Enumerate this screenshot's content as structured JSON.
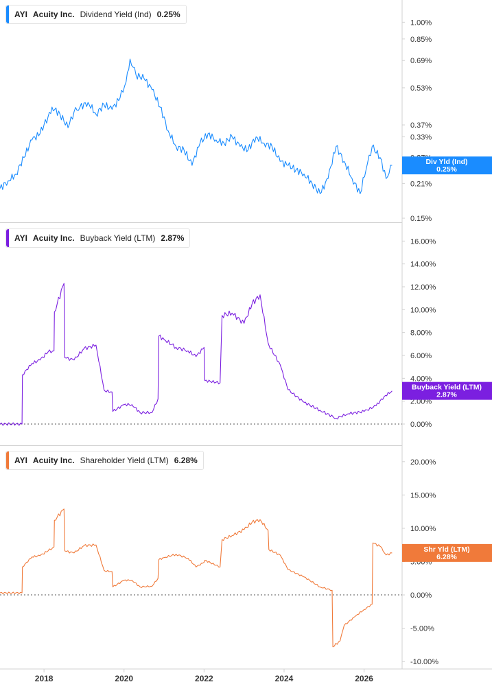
{
  "chart_data": [
    {
      "type": "line",
      "ticker": "AYI",
      "company": "Acuity Inc.",
      "metric": "Dividend Yield (Ind)",
      "value_label": "0.25%",
      "tag_label": "Div Yld (Ind)",
      "tag_value": "0.25%",
      "color": "#1a8cff",
      "scale": "log",
      "ylim": [
        0.15,
        1.1
      ],
      "y_ticks": [
        "1.00%",
        "0.85%",
        "0.69%",
        "0.53%",
        "0.37%",
        "0.33%",
        "0.27%",
        "0.21%",
        "0.15%"
      ],
      "y_tick_values": [
        1.0,
        0.85,
        0.69,
        0.53,
        0.37,
        0.33,
        0.27,
        0.21,
        0.15
      ],
      "x": [
        2016.9,
        2017.1,
        2017.3,
        2017.5,
        2017.7,
        2017.9,
        2018.1,
        2018.2,
        2018.4,
        2018.6,
        2018.75,
        2018.9,
        2019.1,
        2019.3,
        2019.5,
        2019.7,
        2019.9,
        2020.05,
        2020.15,
        2020.3,
        2020.5,
        2020.7,
        2020.9,
        2021.1,
        2021.3,
        2021.5,
        2021.7,
        2021.9,
        2022.1,
        2022.3,
        2022.5,
        2022.7,
        2022.9,
        2023.1,
        2023.3,
        2023.5,
        2023.7,
        2023.9,
        2024.1,
        2024.3,
        2024.5,
        2024.7,
        2024.9,
        2025.1,
        2025.3,
        2025.5,
        2025.7,
        2025.9,
        2026.05,
        2026.2,
        2026.4,
        2026.55,
        2026.7
      ],
      "y": [
        0.2,
        0.215,
        0.23,
        0.27,
        0.32,
        0.34,
        0.4,
        0.44,
        0.41,
        0.36,
        0.42,
        0.44,
        0.46,
        0.41,
        0.45,
        0.43,
        0.48,
        0.56,
        0.7,
        0.6,
        0.58,
        0.52,
        0.44,
        0.35,
        0.3,
        0.29,
        0.25,
        0.31,
        0.34,
        0.32,
        0.31,
        0.33,
        0.3,
        0.29,
        0.33,
        0.31,
        0.3,
        0.26,
        0.25,
        0.24,
        0.23,
        0.21,
        0.19,
        0.22,
        0.3,
        0.26,
        0.22,
        0.19,
        0.24,
        0.3,
        0.27,
        0.22,
        0.25
      ]
    },
    {
      "type": "line",
      "ticker": "AYI",
      "company": "Acuity Inc.",
      "metric": "Buyback Yield (LTM)",
      "value_label": "2.87%",
      "tag_label": "Buyback Yield (LTM)",
      "tag_value": "2.87%",
      "color": "#7b1fe0",
      "scale": "linear",
      "ylim": [
        -1.5,
        16.5
      ],
      "y_ticks": [
        "16.00%",
        "14.00%",
        "12.00%",
        "10.00%",
        "8.00%",
        "6.00%",
        "4.00%",
        "2.00%",
        "0.00%"
      ],
      "y_tick_values": [
        16,
        14,
        12,
        10,
        8,
        6,
        4,
        2,
        0
      ],
      "x": [
        2016.9,
        2017.45,
        2017.46,
        2017.7,
        2017.9,
        2018.1,
        2018.25,
        2018.26,
        2018.5,
        2018.52,
        2018.75,
        2019.0,
        2019.3,
        2019.5,
        2019.52,
        2019.7,
        2019.72,
        2020.0,
        2020.2,
        2020.4,
        2020.7,
        2020.85,
        2020.87,
        2021.0,
        2021.3,
        2021.6,
        2021.8,
        2022.0,
        2022.02,
        2022.4,
        2022.45,
        2022.7,
        2023.0,
        2023.2,
        2023.4,
        2023.6,
        2023.62,
        2023.9,
        2024.1,
        2024.5,
        2024.9,
        2025.3,
        2025.6,
        2026.0,
        2026.3,
        2026.5,
        2026.7
      ],
      "y": [
        0.0,
        0.0,
        4.3,
        5.3,
        5.6,
        6.3,
        6.4,
        9.8,
        12.3,
        5.8,
        5.6,
        6.6,
        6.9,
        3.0,
        2.9,
        2.8,
        1.1,
        1.7,
        1.7,
        1.0,
        1.0,
        2.2,
        7.7,
        7.4,
        6.7,
        6.4,
        5.9,
        6.7,
        3.8,
        3.6,
        9.5,
        9.7,
        8.8,
        10.5,
        11.3,
        7.1,
        6.9,
        5.2,
        3.0,
        1.9,
        1.2,
        0.5,
        0.9,
        1.1,
        1.6,
        2.4,
        2.9
      ]
    },
    {
      "type": "line",
      "ticker": "AYI",
      "company": "Acuity Inc.",
      "metric": "Shareholder Yield (LTM)",
      "value_label": "6.28%",
      "tag_label": "Shr Yld (LTM)",
      "tag_value": "6.28%",
      "color": "#f07a3a",
      "scale": "linear",
      "ylim": [
        -10.5,
        20.5
      ],
      "y_ticks": [
        "20.00%",
        "15.00%",
        "10.00%",
        "5.00%",
        "0.00%",
        "-5.00%",
        "-10.00%"
      ],
      "y_tick_values": [
        20,
        15,
        10,
        5,
        0,
        -5,
        -10
      ],
      "x": [
        2016.9,
        2017.45,
        2017.46,
        2017.7,
        2017.9,
        2018.1,
        2018.25,
        2018.26,
        2018.5,
        2018.52,
        2018.75,
        2019.0,
        2019.3,
        2019.5,
        2019.52,
        2019.7,
        2019.72,
        2020.0,
        2020.2,
        2020.4,
        2020.7,
        2020.85,
        2020.87,
        2021.0,
        2021.3,
        2021.6,
        2021.8,
        2022.0,
        2022.02,
        2022.4,
        2022.45,
        2022.7,
        2023.0,
        2023.2,
        2023.4,
        2023.6,
        2023.62,
        2023.9,
        2024.1,
        2024.5,
        2024.9,
        2025.2,
        2025.22,
        2025.4,
        2025.5,
        2025.8,
        2026.0,
        2026.2,
        2026.22,
        2026.4,
        2026.55,
        2026.7
      ],
      "y": [
        0.3,
        0.3,
        4.2,
        5.7,
        5.9,
        6.6,
        7.2,
        11.2,
        12.9,
        6.6,
        6.3,
        7.4,
        7.5,
        3.7,
        3.6,
        3.5,
        1.2,
        2.2,
        2.2,
        1.2,
        1.3,
        2.5,
        5.3,
        5.6,
        6.1,
        5.5,
        4.2,
        4.9,
        5.2,
        4.2,
        8.3,
        8.9,
        9.8,
        10.9,
        11.3,
        9.7,
        6.8,
        6.0,
        3.8,
        2.7,
        1.2,
        0.7,
        -7.8,
        -6.9,
        -4.6,
        -3.1,
        -2.2,
        -1.4,
        7.8,
        7.3,
        6.0,
        6.3
      ]
    }
  ],
  "x_axis": {
    "labels": [
      "2018",
      "2020",
      "2022",
      "2024",
      "2026"
    ],
    "values": [
      2018,
      2020,
      2022,
      2024,
      2026
    ],
    "range": [
      2016.9,
      2026.95
    ]
  },
  "colors": {
    "grid_border": "#d0d0d0",
    "zero_line": "#555555",
    "axis_text": "#333333"
  }
}
